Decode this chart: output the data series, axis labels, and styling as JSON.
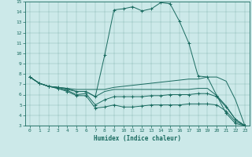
{
  "xlabel": "Humidex (Indice chaleur)",
  "bg_color": "#cce9e9",
  "line_color": "#1a6b60",
  "xlim": [
    -0.5,
    23.5
  ],
  "ylim": [
    3,
    15
  ],
  "xticks": [
    0,
    1,
    2,
    3,
    4,
    5,
    6,
    7,
    8,
    9,
    10,
    11,
    12,
    13,
    14,
    15,
    16,
    17,
    18,
    19,
    20,
    21,
    22,
    23
  ],
  "yticks": [
    3,
    4,
    5,
    6,
    7,
    8,
    9,
    10,
    11,
    12,
    13,
    14,
    15
  ],
  "lines": [
    {
      "x": [
        0,
        1,
        2,
        3,
        4,
        5,
        6,
        7,
        8,
        9,
        10,
        11,
        12,
        13,
        14,
        15,
        16,
        17,
        18,
        19,
        20,
        21,
        22,
        23
      ],
      "y": [
        7.7,
        7.1,
        6.8,
        6.7,
        6.6,
        6.3,
        6.3,
        5.8,
        9.8,
        14.2,
        14.3,
        14.5,
        14.1,
        14.3,
        14.9,
        14.8,
        13.1,
        11.0,
        7.8,
        7.7,
        5.9,
        4.2,
        3.2,
        3.0
      ],
      "marker": "+"
    },
    {
      "x": [
        0,
        1,
        2,
        3,
        4,
        5,
        6,
        7,
        8,
        9,
        10,
        11,
        12,
        13,
        14,
        15,
        16,
        17,
        18,
        19,
        20,
        21,
        22,
        23
      ],
      "y": [
        7.7,
        7.1,
        6.8,
        6.7,
        6.6,
        6.5,
        6.5,
        6.5,
        6.5,
        6.7,
        6.8,
        6.9,
        7.0,
        7.1,
        7.2,
        7.3,
        7.4,
        7.5,
        7.5,
        7.7,
        7.7,
        7.3,
        5.5,
        3.0
      ],
      "marker": null
    },
    {
      "x": [
        0,
        1,
        2,
        3,
        4,
        5,
        6,
        7,
        8,
        9,
        10,
        11,
        12,
        13,
        14,
        15,
        16,
        17,
        18,
        19,
        20,
        21,
        22,
        23
      ],
      "y": [
        7.7,
        7.1,
        6.8,
        6.7,
        6.5,
        6.3,
        6.3,
        5.8,
        6.3,
        6.5,
        6.5,
        6.5,
        6.5,
        6.5,
        6.5,
        6.5,
        6.5,
        6.5,
        6.6,
        6.6,
        5.9,
        4.9,
        3.6,
        3.0
      ],
      "marker": null
    },
    {
      "x": [
        0,
        1,
        2,
        3,
        4,
        5,
        6,
        7,
        8,
        9,
        10,
        11,
        12,
        13,
        14,
        15,
        16,
        17,
        18,
        19,
        20,
        21,
        22,
        23
      ],
      "y": [
        7.7,
        7.1,
        6.8,
        6.6,
        6.4,
        6.0,
        6.1,
        5.0,
        5.5,
        5.8,
        5.8,
        5.8,
        5.8,
        5.9,
        5.9,
        6.0,
        6.0,
        6.0,
        6.1,
        6.1,
        5.8,
        4.8,
        3.6,
        3.0
      ],
      "marker": "+"
    },
    {
      "x": [
        0,
        1,
        2,
        3,
        4,
        5,
        6,
        7,
        8,
        9,
        10,
        11,
        12,
        13,
        14,
        15,
        16,
        17,
        18,
        19,
        20,
        21,
        22,
        23
      ],
      "y": [
        7.7,
        7.1,
        6.8,
        6.6,
        6.3,
        5.9,
        5.9,
        4.7,
        4.8,
        5.0,
        4.8,
        4.8,
        4.9,
        5.0,
        5.0,
        5.0,
        5.0,
        5.1,
        5.1,
        5.1,
        5.0,
        4.4,
        3.4,
        3.0
      ],
      "marker": "+"
    }
  ]
}
